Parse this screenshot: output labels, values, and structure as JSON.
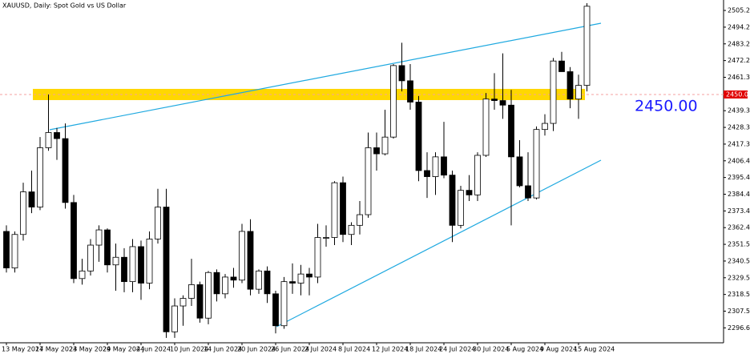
{
  "chart_data": {
    "type": "candlestick",
    "title": "XAUUSD, Daily:  Spot Gold vs US Dollar",
    "categories": [
      "13 May 2024",
      null,
      null,
      null,
      "17 May 2024",
      null,
      null,
      null,
      "23 May 2024",
      null,
      null,
      null,
      "29 May 2024",
      null,
      null,
      null,
      "4 Jun 2024",
      null,
      null,
      null,
      "10 Jun 2024",
      null,
      null,
      null,
      "14 Jun 2024",
      null,
      null,
      null,
      "20 Jun 2024",
      null,
      null,
      null,
      "26 Jun 2024",
      null,
      null,
      null,
      "2 Jul 2024",
      null,
      null,
      null,
      "8 Jul 2024",
      null,
      null,
      null,
      "12 Jul 2024",
      null,
      null,
      null,
      "18 Jul 2024",
      null,
      null,
      null,
      "24 Jul 2024",
      null,
      null,
      null,
      "30 Jul 2024",
      null,
      null,
      null,
      "5 Aug 2024",
      null,
      null,
      null,
      "9 Aug 2024",
      null,
      null,
      null,
      "15 Aug 2024",
      null
    ],
    "open": [
      2360,
      2336,
      2358,
      2386,
      2376,
      2415,
      2425,
      2421,
      2379,
      2329,
      2334,
      2351,
      2361,
      2338,
      2343,
      2327,
      2350,
      2326,
      2355,
      2376,
      2294,
      2311,
      2316,
      2325,
      2303,
      2333,
      2319,
      2330,
      2328,
      2360,
      2322,
      2334,
      2319,
      2298,
      2327,
      2326,
      2332,
      2330,
      2356,
      2356,
      2392,
      2358,
      2364,
      2371,
      2415,
      2411,
      2422,
      2469,
      2459,
      2445,
      2400,
      2396,
      2409,
      2397,
      2364,
      2387,
      2384,
      2410,
      2447,
      2446,
      2443,
      2409,
      2390,
      2382,
      2427,
      2431,
      2472,
      2465,
      2447,
      2456
    ],
    "high": [
      2364,
      2360,
      2392,
      2400,
      2422,
      2450,
      2428,
      2431,
      2384,
      2342,
      2355,
      2364,
      2362,
      2352,
      2349,
      2355,
      2354,
      2360,
      2388,
      2388,
      2316,
      2318,
      2342,
      2327,
      2334,
      2335,
      2332,
      2336,
      2365,
      2368,
      2335,
      2337,
      2321,
      2330,
      2339,
      2338,
      2336,
      2365,
      2364,
      2393,
      2396,
      2366,
      2380,
      2425,
      2425,
      2440,
      2470,
      2484,
      2470,
      2449,
      2412,
      2412,
      2432,
      2400,
      2390,
      2397,
      2412,
      2451,
      2464,
      2477,
      2453,
      2420,
      2412,
      2429,
      2437,
      2474,
      2478,
      2468,
      2463,
      2510
    ],
    "low": [
      2333,
      2333,
      2354,
      2372,
      2374,
      2413,
      2407,
      2375,
      2326,
      2325,
      2331,
      2340,
      2333,
      2321,
      2320,
      2320,
      2315,
      2322,
      2352,
      2290,
      2290,
      2298,
      2311,
      2300,
      2299,
      2314,
      2316,
      2323,
      2326,
      2318,
      2319,
      2313,
      2293,
      2296,
      2319,
      2318,
      2318,
      2326,
      2350,
      2351,
      2353,
      2351,
      2358,
      2369,
      2400,
      2410,
      2421,
      2452,
      2440,
      2393,
      2382,
      2384,
      2395,
      2353,
      2362,
      2380,
      2380,
      2409,
      2440,
      2434,
      2364,
      2389,
      2380,
      2381,
      2423,
      2426,
      2465,
      2441,
      2434,
      2452
    ],
    "close": [
      2336,
      2358,
      2386,
      2376,
      2415,
      2425,
      2421,
      2379,
      2329,
      2334,
      2351,
      2361,
      2338,
      2343,
      2327,
      2350,
      2326,
      2355,
      2376,
      2294,
      2311,
      2316,
      2325,
      2303,
      2333,
      2319,
      2330,
      2328,
      2360,
      2322,
      2334,
      2319,
      2298,
      2327,
      2326,
      2332,
      2330,
      2356,
      2356,
      2392,
      2358,
      2364,
      2371,
      2415,
      2411,
      2422,
      2469,
      2459,
      2445,
      2400,
      2396,
      2409,
      2397,
      2364,
      2387,
      2384,
      2410,
      2447,
      2446,
      2443,
      2409,
      2390,
      2382,
      2427,
      2431,
      2472,
      2465,
      2447,
      2456,
      2508
    ],
    "ylim": [
      2286.8,
      2512.1
    ],
    "yticks": [
      2505.23,
      2494.25,
      2483.27,
      2472.29,
      2461.31,
      2439.35,
      2428.37,
      2417.39,
      2406.41,
      2395.43,
      2384.45,
      2373.47,
      2362.49,
      2351.51,
      2340.53,
      2329.55,
      2318.57,
      2307.59,
      2296.61
    ],
    "level": {
      "value": 2450,
      "label": "2450.00",
      "color": "#ffd700"
    },
    "up_color": "#ffffff",
    "down_color": "#000000"
  }
}
